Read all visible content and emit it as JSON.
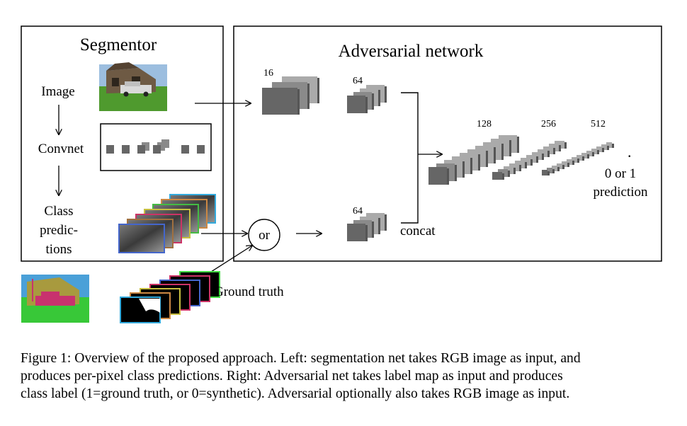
{
  "segmentor": {
    "title": "Segmentor",
    "steps": {
      "image": "Image",
      "convnet": "Convnet",
      "class_line1": "Class",
      "class_line2": "predic-",
      "class_line3": "tions"
    }
  },
  "adversarial": {
    "title": "Adversarial network",
    "or_label": "or",
    "concat_label": "concat",
    "layers": {
      "l16": "16",
      "l64a": "64",
      "l64b": "64",
      "l128": "128",
      "l256": "256",
      "l512": "512"
    },
    "dot": ".",
    "output_line1": "0 or 1",
    "output_line2": "prediction"
  },
  "ground_truth_label": "Ground truth",
  "caption": {
    "line1": "Figure 1: Overview of the proposed approach. Left: segmentation net takes RGB image as input, and",
    "line2": "produces per-pixel class predictions. Right: Adversarial net takes label map as input and produces",
    "line3": "class label (1=ground truth, or 0=synthetic). Adversarial optionally also takes RGB image as input."
  },
  "colors": {
    "stroke": "#000000",
    "block_dark": "#666666",
    "block_mid": "#8a8a8a",
    "block_light": "#aaaaaa",
    "sky": "#8fb4d8",
    "grass": "#4a9a30",
    "gt_sky": "#4a9fd8",
    "gt_grass": "#3cc83c",
    "gt_object": "#c8326e",
    "gt_building": "#a8a040"
  }
}
